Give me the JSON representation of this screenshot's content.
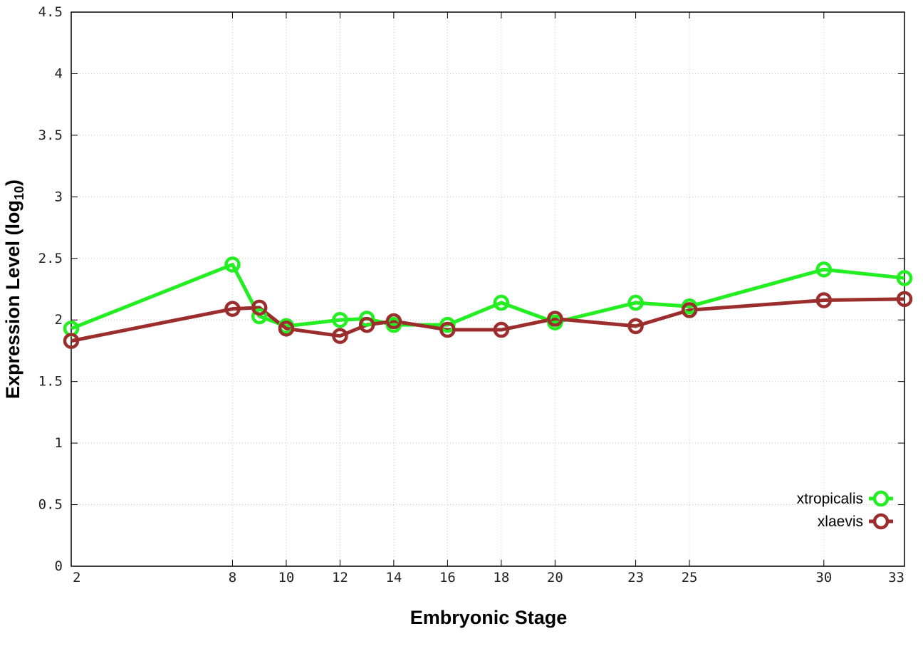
{
  "chart_data": {
    "type": "line",
    "xlabel": "Embryonic Stage",
    "ylabel_main": "Expression Level (log",
    "ylabel_sub": "10",
    "ylabel_close": ")",
    "x_ticks": [
      2,
      8,
      10,
      12,
      14,
      16,
      18,
      20,
      23,
      25,
      30,
      33
    ],
    "y_ticks": [
      "0",
      "0.5",
      "1",
      "1.5",
      "2",
      "2.5",
      "3",
      "3.5",
      "4",
      "4.5"
    ],
    "xlim": [
      2,
      33
    ],
    "ylim": [
      0,
      4.5
    ],
    "grid": true,
    "legend_position": "bottom-right",
    "series": [
      {
        "name": "xtropicalis",
        "color": "#22ee22",
        "x": [
          2,
          8,
          9,
          10,
          12,
          13,
          14,
          16,
          18,
          20,
          23,
          25,
          30,
          33
        ],
        "y": [
          1.93,
          2.45,
          2.03,
          1.95,
          2.0,
          2.01,
          1.96,
          1.96,
          2.14,
          1.98,
          2.14,
          2.11,
          2.41,
          2.34
        ]
      },
      {
        "name": "xlaevis",
        "color": "#9b2d2d",
        "x": [
          2,
          8,
          9,
          10,
          12,
          13,
          14,
          16,
          18,
          20,
          23,
          25,
          30,
          33
        ],
        "y": [
          1.83,
          2.09,
          2.1,
          1.93,
          1.87,
          1.96,
          1.99,
          1.92,
          1.92,
          2.01,
          1.95,
          2.08,
          2.16,
          2.17
        ]
      }
    ]
  }
}
